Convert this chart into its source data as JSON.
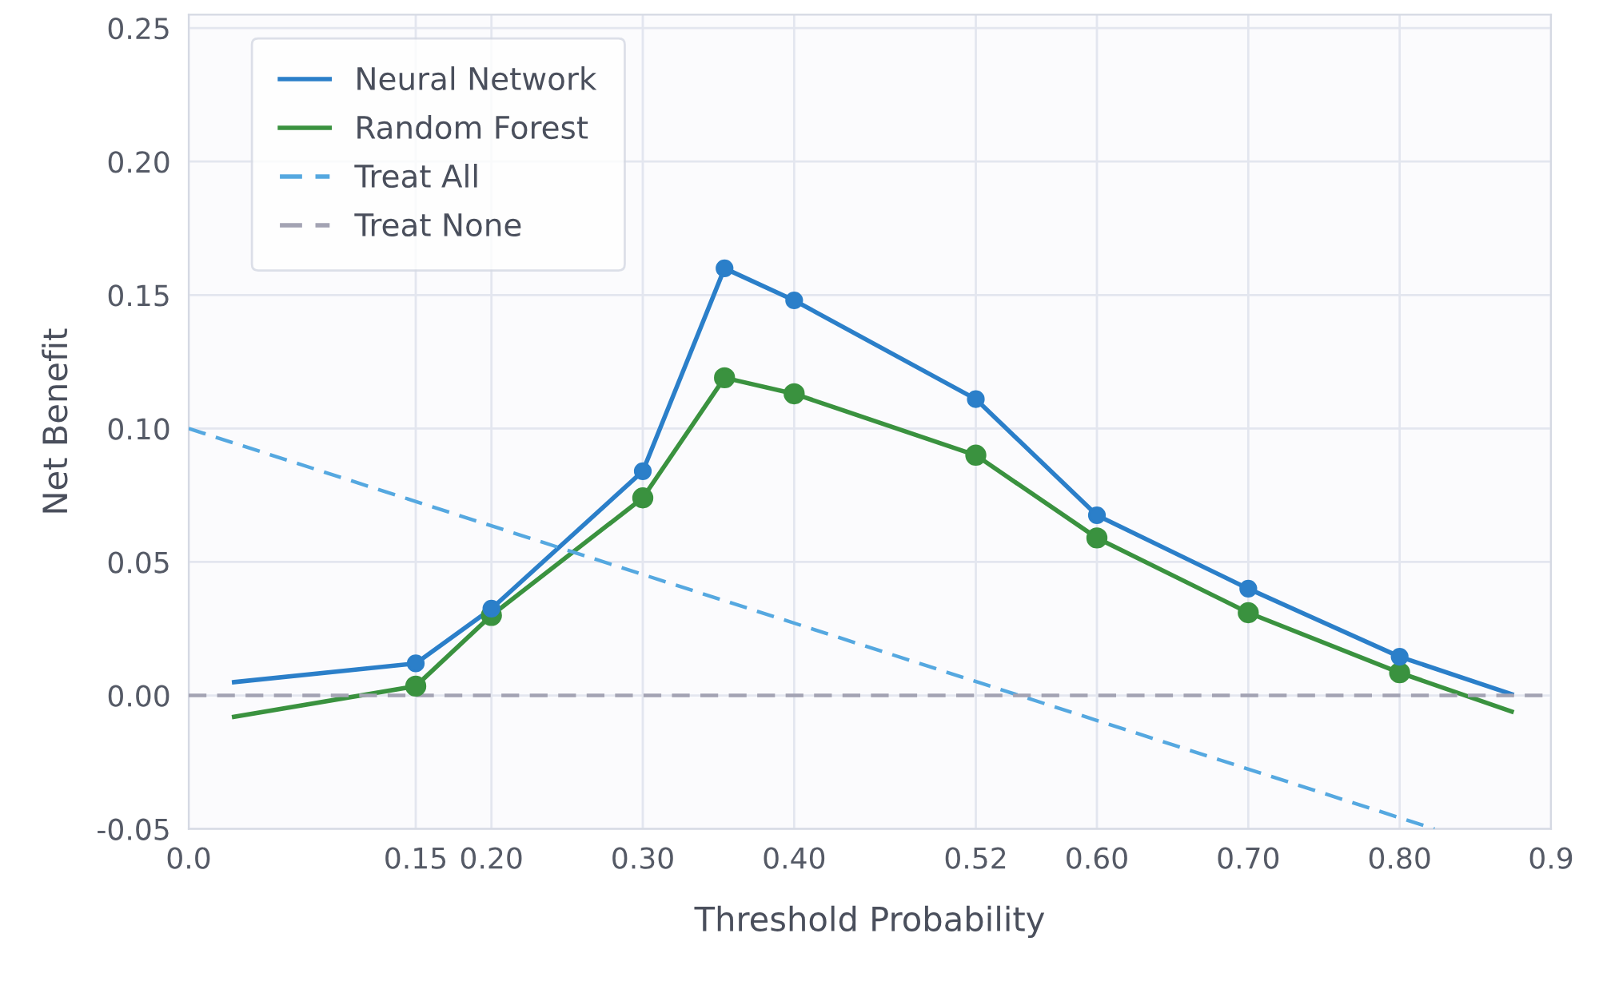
{
  "chart_data": {
    "type": "line",
    "xlabel": "Threshold Probability",
    "ylabel": "Net Benefit",
    "xlim": [
      0,
      0.9
    ],
    "xticks": [
      {
        "value": 0,
        "label": "0.0"
      },
      0.15,
      {
        "value": 0.2,
        "label": "0.20"
      },
      {
        "value": 0.3,
        "label": "0.30"
      },
      {
        "value": 0.4,
        "label": "0.40"
      },
      0.52,
      {
        "value": 0.6,
        "label": "0.60"
      },
      {
        "value": 0.7,
        "label": "0.70"
      },
      {
        "value": 0.8,
        "label": "0.80"
      },
      0.9
    ],
    "ylim": [
      -0.05,
      0.255
    ],
    "yticks": [
      {
        "value": -0.05,
        "label": "-0.05"
      },
      {
        "value": 0,
        "label": "0.00"
      },
      0.05,
      {
        "value": 0.1,
        "label": "0.10"
      },
      0.15,
      {
        "value": 0.2,
        "label": "0.20"
      },
      0.25
    ],
    "grid": true,
    "legend": "top left",
    "series": [
      {
        "name": "Neural Network",
        "color": "#2b7fc9",
        "marker": "circle",
        "line_style": "solid",
        "x": [
          0.03,
          0.15,
          0.2,
          0.3,
          0.354,
          0.4,
          0.52,
          0.6,
          0.7,
          0.8,
          0.874
        ],
        "values": [
          0.005,
          0.012,
          0.0325,
          0.084,
          0.16,
          0.148,
          0.111,
          0.0675,
          0.04,
          0.0145,
          0.0005
        ]
      },
      {
        "name": "Random Forest",
        "color": "#3a923f",
        "marker": "circle",
        "line_style": "solid",
        "x": [
          0.03,
          0.15,
          0.2,
          0.3,
          0.354,
          0.4,
          0.52,
          0.6,
          0.7,
          0.8,
          0.874
        ],
        "values": [
          -0.008,
          0.0035,
          0.03,
          0.074,
          0.119,
          0.113,
          0.09,
          0.059,
          0.031,
          0.0085,
          -0.006
        ]
      },
      {
        "name": "Treat All",
        "color": "#55a8e0",
        "marker": "none",
        "line_style": "dashed",
        "x": [
          0,
          0.823
        ],
        "values": [
          0.1,
          -0.05
        ]
      },
      {
        "name": "Treat None",
        "color": "#a3a3b3",
        "marker": "none",
        "line_style": "dashed",
        "x": [
          0,
          0.9
        ],
        "values": [
          0,
          0
        ]
      }
    ]
  }
}
